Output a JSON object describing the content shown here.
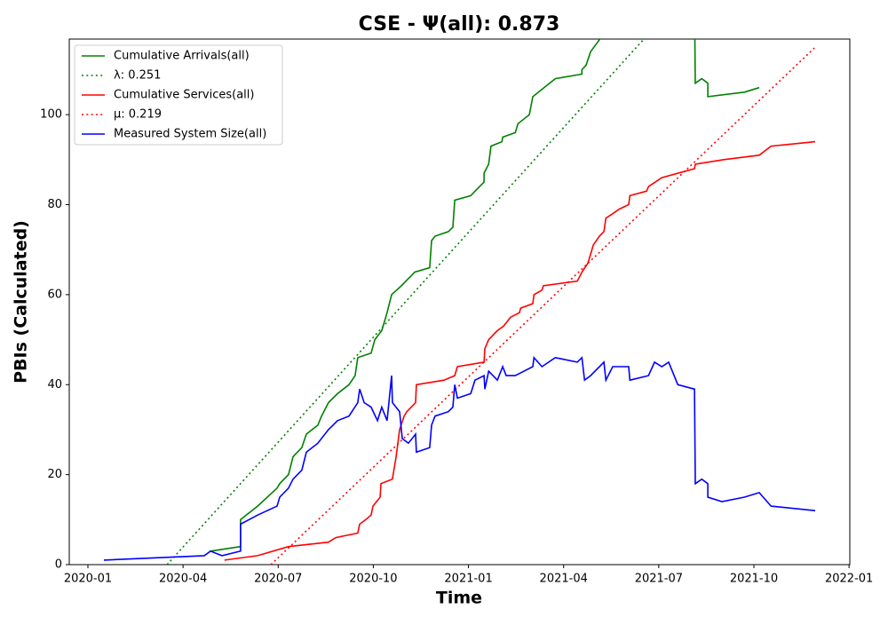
{
  "chart_data": {
    "type": "line",
    "title": "CSE -  Ψ(all): 0.873",
    "x_label": "Time",
    "y_label": "PBIs (Calculated)",
    "legend": "upper left",
    "xlim": [
      2019.951,
      2022.002
    ],
    "ylim": [
      0,
      116.8
    ],
    "xticks": [
      {
        "value": 2020.0,
        "label": "2020-01"
      },
      {
        "value": 2020.25,
        "label": "2020-04"
      },
      {
        "value": 2020.5,
        "label": "2020-07"
      },
      {
        "value": 2020.75,
        "label": "2020-10"
      },
      {
        "value": 2021.0,
        "label": "2021-01"
      },
      {
        "value": 2021.25,
        "label": "2021-04"
      },
      {
        "value": 2021.5,
        "label": "2021-07"
      },
      {
        "value": 2021.75,
        "label": "2021-10"
      },
      {
        "value": 2022.0,
        "label": "2022-01"
      }
    ],
    "yticks": [
      0,
      20,
      40,
      60,
      80,
      100
    ],
    "series": [
      {
        "name": "Cumulative Arrivals(all)",
        "color": "#008000",
        "linestyle": "solid",
        "x": [
          2020.322,
          2020.401,
          2020.401,
          2020.446,
          2020.497,
          2020.504,
          2020.527,
          2020.539,
          2020.562,
          2020.574,
          2020.604,
          2020.614,
          2020.632,
          2020.656,
          2020.686,
          2020.702,
          2020.709,
          2020.744,
          2020.754,
          2020.772,
          2020.786,
          2020.798,
          2020.824,
          2020.859,
          2020.898,
          2020.903,
          2020.912,
          2020.947,
          2020.959,
          2020.964,
          2021.006,
          2021.029,
          2021.041,
          2021.041,
          2021.053,
          2021.059,
          2021.088,
          2021.09,
          2021.123,
          2021.13,
          2021.16,
          2021.169,
          2021.228,
          2021.298,
          2021.298,
          2021.309,
          2021.321,
          2021.356,
          null,
          2021.594,
          2021.596,
          2021.613,
          2021.629,
          2021.629,
          2021.725,
          2021.764
        ],
        "values": [
          3,
          4,
          10,
          13,
          17,
          18,
          20,
          24,
          26,
          29,
          31,
          33,
          36,
          38,
          40,
          42,
          46,
          47,
          50,
          52,
          56,
          60,
          62,
          65,
          66,
          72,
          73,
          74,
          75,
          81,
          82,
          84,
          85,
          87,
          89,
          93,
          94,
          95,
          96,
          98,
          100,
          104,
          108,
          109,
          110,
          111,
          114,
          118,
          null,
          125,
          107,
          108,
          107,
          104,
          105,
          106
        ]
      },
      {
        "name": "λ: 0.251",
        "color": "#008000",
        "linestyle": "dotted",
        "x": [
          2020.208,
          2021.461
        ],
        "values": [
          0,
          116.8
        ]
      },
      {
        "name": "Cumulative Services(all)",
        "color": "#ff0000",
        "linestyle": "solid",
        "x": [
          2020.359,
          2020.446,
          2020.527,
          2020.632,
          2020.651,
          2020.709,
          2020.714,
          2020.73,
          2020.744,
          2020.749,
          2020.768,
          2020.77,
          2020.8,
          2020.81,
          2020.819,
          2020.831,
          2020.838,
          2020.861,
          2020.863,
          2020.936,
          2020.964,
          2020.971,
          2021.041,
          2021.043,
          2021.053,
          2021.076,
          2021.092,
          2021.111,
          2021.134,
          2021.137,
          2021.169,
          2021.172,
          2021.193,
          2021.197,
          2021.286,
          2021.298,
          2021.314,
          2021.328,
          2021.344,
          2021.356,
          2021.361,
          2021.379,
          2021.396,
          2021.421,
          2021.424,
          2021.468,
          2021.473,
          2021.508,
          2021.594,
          2021.596,
          2021.671,
          2021.764,
          2021.795,
          2021.911
        ],
        "values": [
          1,
          2,
          4,
          5,
          6,
          7,
          9,
          10,
          11,
          13,
          15,
          18,
          19,
          24,
          30,
          33,
          34,
          36,
          40,
          41,
          42,
          44,
          45,
          48,
          50,
          52,
          53,
          55,
          56,
          57,
          58,
          60,
          61,
          62,
          63,
          65,
          67,
          71,
          73,
          74,
          77,
          78,
          79,
          80,
          82,
          83,
          84,
          86,
          88,
          89,
          90,
          91,
          93,
          94
        ]
      },
      {
        "name": "μ: 0.219",
        "color": "#ff0000",
        "linestyle": "dotted",
        "x": [
          2020.481,
          2021.909
        ],
        "values": [
          0,
          114.8
        ]
      },
      {
        "name": "Measured System Size(all)",
        "color": "#0000ff",
        "linestyle": "solid",
        "x": [
          2020.042,
          2020.306,
          2020.322,
          2020.352,
          2020.401,
          2020.401,
          2020.446,
          2020.497,
          2020.504,
          2020.527,
          2020.539,
          2020.562,
          2020.574,
          2020.604,
          2020.632,
          2020.644,
          2020.656,
          2020.686,
          2020.709,
          2020.714,
          2020.726,
          2020.744,
          2020.761,
          2020.772,
          2020.786,
          2020.798,
          2020.8,
          2020.819,
          2020.826,
          2020.842,
          2020.861,
          2020.863,
          2020.898,
          2020.903,
          2020.912,
          2020.947,
          2020.959,
          2020.964,
          2020.971,
          2021.006,
          2021.017,
          2021.041,
          2021.043,
          2021.053,
          2021.076,
          2021.09,
          2021.099,
          2021.123,
          2021.169,
          2021.172,
          2021.193,
          2021.228,
          2021.286,
          2021.298,
          2021.305,
          2021.321,
          2021.356,
          2021.361,
          2021.379,
          2021.421,
          2021.424,
          2021.473,
          2021.489,
          2021.508,
          2021.526,
          2021.55,
          2021.594,
          2021.596,
          2021.613,
          2021.629,
          2021.629,
          2021.666,
          2021.725,
          2021.764,
          2021.795,
          2021.911
        ],
        "values": [
          1,
          2,
          3,
          2,
          3,
          9,
          11,
          13,
          15,
          17,
          19,
          21,
          25,
          27,
          30,
          31,
          32,
          33,
          36,
          39,
          36,
          35,
          32,
          35,
          32,
          42,
          36,
          34,
          28,
          27,
          29,
          25,
          26,
          31,
          33,
          34,
          35,
          40,
          37,
          38,
          41,
          42,
          39,
          43,
          41,
          44,
          42,
          42,
          44,
          46,
          44,
          46,
          45,
          46,
          41,
          42,
          45,
          41,
          44,
          44,
          41,
          42,
          45,
          44,
          45,
          40,
          39,
          18,
          19,
          18,
          15,
          14,
          15,
          16,
          13,
          12
        ]
      }
    ]
  }
}
